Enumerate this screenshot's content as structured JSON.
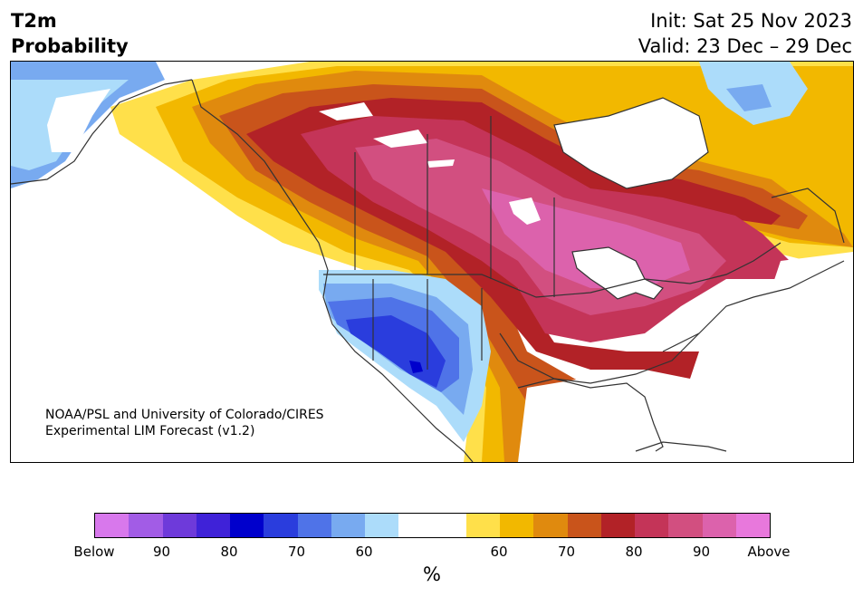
{
  "title": {
    "line1": "T2m",
    "line2": "Probability"
  },
  "header": {
    "init": "Init: Sat 25 Nov 2023",
    "valid": "Valid: 23 Dec – 29 Dec"
  },
  "credit": {
    "line1": "NOAA/PSL and University of Colorado/CIRES",
    "line2": "Experimental LIM Forecast (v1.2)"
  },
  "colorbar": {
    "colors": [
      "#d878ec",
      "#a25ce6",
      "#6e3ada",
      "#3f22d8",
      "#0000cc",
      "#2a3ddd",
      "#4f73e8",
      "#78aaf0",
      "#acdcfa",
      "#ffffff",
      "#ffffff",
      "#ffe04a",
      "#f2b800",
      "#e08a0e",
      "#c9541b",
      "#b22227",
      "#c43458",
      "#d24f80",
      "#dc62ac",
      "#e878dc"
    ],
    "labels": [
      "Below",
      "90",
      "80",
      "70",
      "60",
      "60",
      "70",
      "80",
      "90",
      "Above"
    ],
    "unit": "%"
  },
  "map": {
    "below_colors": {
      "light": "#acdcfa",
      "mid": "#78aaf0",
      "mid2": "#4f73e8",
      "dark": "#2a3ddd",
      "darkest": "#0000cc"
    },
    "above_colors": {
      "yellow": "#ffe04a",
      "gold": "#f2b800",
      "orange": "#e08a0e",
      "burnt": "#c9541b",
      "red": "#b22227",
      "crimson": "#c43458",
      "rose": "#d24f80",
      "pink": "#dc62ac"
    }
  }
}
